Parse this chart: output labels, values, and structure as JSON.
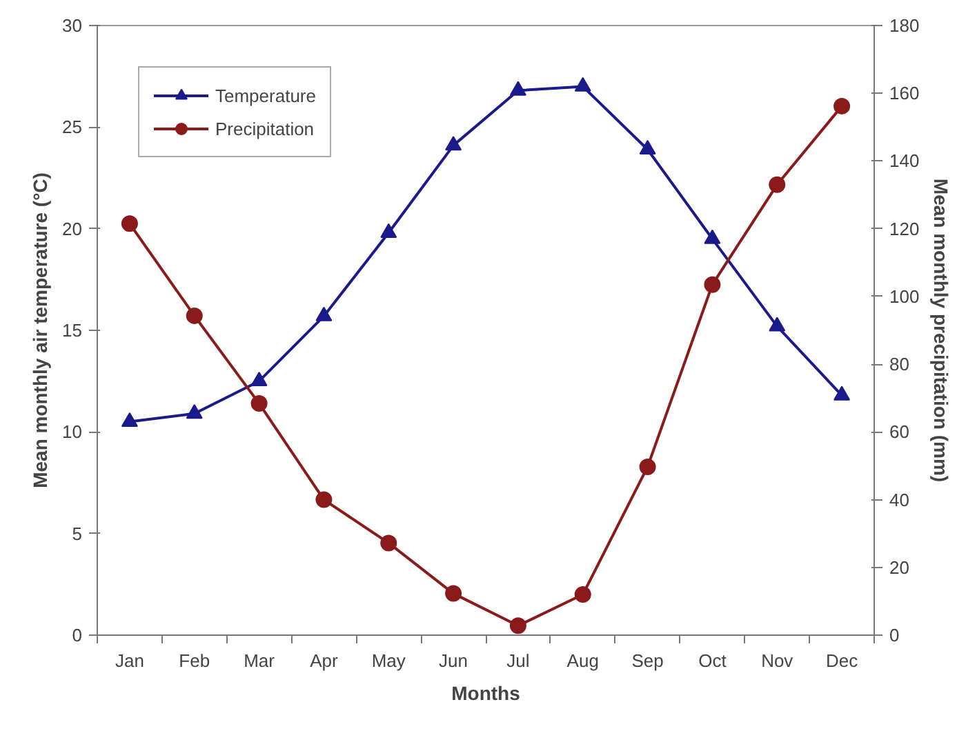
{
  "chart_data": {
    "type": "line",
    "xlabel": "Months",
    "ylabel": "Mean monthly air temperature (°C)",
    "y2label": "Mean monthly precipitation (mm)",
    "categories": [
      "Jan",
      "Feb",
      "Mar",
      "Apr",
      "May",
      "Jun",
      "Jul",
      "Aug",
      "Sep",
      "Oct",
      "Nov",
      "Dec"
    ],
    "series": [
      {
        "name": "Temperature",
        "color": "#1a1a8c",
        "marker": "triangle",
        "values": [
          10.5,
          10.9,
          12.5,
          15.7,
          19.8,
          24.1,
          26.8,
          27.0,
          23.9,
          19.5,
          15.2,
          11.8
        ]
      },
      {
        "name": "Precipitation",
        "color": "#8b1a1a",
        "marker": "circle",
        "axis": "y2",
        "values": [
          121.5,
          94.3,
          68.4,
          40,
          27.2,
          12.3,
          2.8,
          12,
          49.7,
          103.5,
          133,
          156.2
        ]
      }
    ],
    "ylim": [
      0,
      30
    ],
    "yticks": [
      0,
      5,
      10,
      15,
      20,
      25,
      30
    ],
    "y2lim": [
      0,
      180
    ],
    "y2ticks": [
      0,
      20,
      40,
      60,
      80,
      100,
      120,
      140,
      160,
      180
    ],
    "grid": false,
    "legend": "top left",
    "line_style": "solid"
  }
}
